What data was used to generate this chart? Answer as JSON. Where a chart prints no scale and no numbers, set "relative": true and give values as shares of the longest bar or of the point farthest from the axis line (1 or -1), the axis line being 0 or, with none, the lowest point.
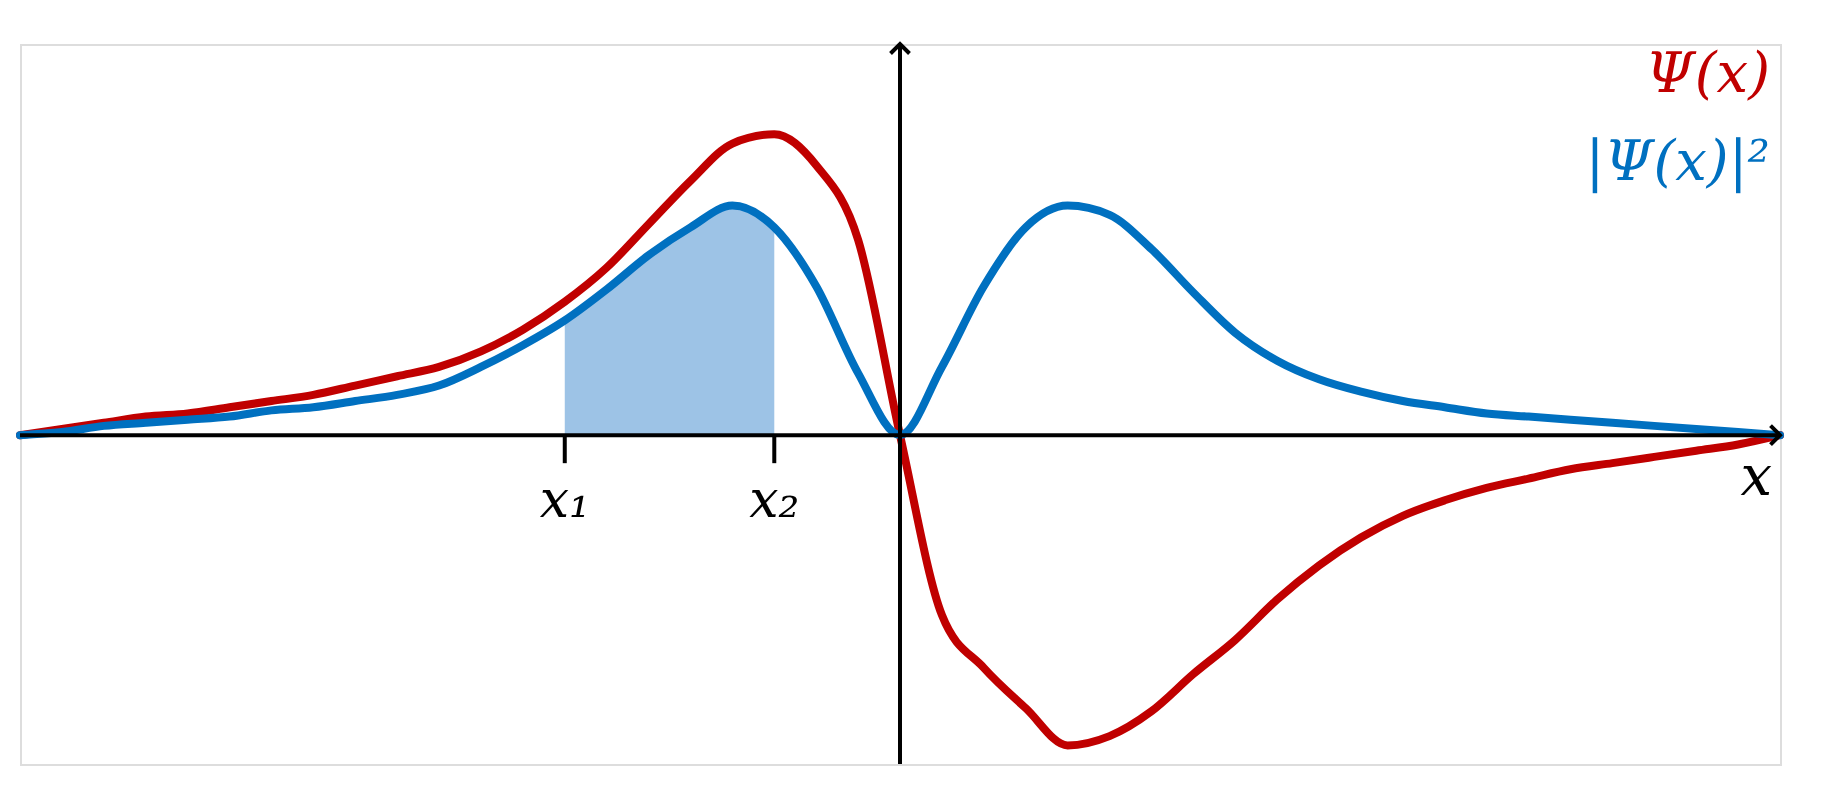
{
  "chart_data": {
    "type": "line",
    "relative": true,
    "xlabel": "x",
    "legend": "top right",
    "marker": "none",
    "line_style": "solid",
    "categories": [
      null,
      null,
      null,
      null,
      null,
      null,
      null,
      null,
      null,
      null,
      null,
      null,
      null,
      "x₁",
      null,
      null,
      null,
      null,
      "x₂",
      null,
      null,
      null,
      null,
      null,
      null,
      null,
      null,
      null,
      null,
      null,
      null,
      null,
      null,
      null,
      null,
      null,
      null,
      null,
      null,
      null,
      null,
      null,
      null
    ],
    "series": [
      {
        "type": "area",
        "color": "#9dc3e6",
        "values": [
          null,
          null,
          null,
          null,
          null,
          null,
          null,
          null,
          null,
          null,
          null,
          null,
          null,
          0.37,
          0.47,
          0.58,
          0.67,
          0.74,
          0.67,
          null,
          null,
          null,
          null,
          null,
          null,
          null,
          null,
          null,
          null,
          null,
          null,
          null,
          null,
          null,
          null,
          null,
          null,
          null,
          null,
          null,
          null,
          null,
          null
        ]
      },
      {
        "name": "Ψ(x)",
        "color": "#c00000",
        "values": [
          0,
          0.02,
          0.04,
          0.06,
          0.07,
          0.09,
          0.11,
          0.13,
          0.16,
          0.19,
          0.22,
          0.27,
          0.34,
          0.43,
          0.54,
          0.68,
          0.82,
          0.94,
          0.97,
          0.87,
          0.63,
          0,
          -0.58,
          -0.75,
          -0.88,
          -1.0,
          -0.97,
          -0.89,
          -0.77,
          -0.66,
          -0.53,
          -0.42,
          -0.33,
          -0.26,
          -0.21,
          -0.17,
          -0.14,
          -0.11,
          -0.09,
          -0.07,
          -0.05,
          -0.03,
          0
        ]
      },
      {
        "name": "|Ψ(x)|²",
        "color": "#0070c0",
        "values": [
          0,
          0.01,
          0.03,
          0.04,
          0.05,
          0.06,
          0.08,
          0.09,
          0.11,
          0.13,
          0.16,
          0.22,
          0.29,
          0.37,
          0.47,
          0.58,
          0.67,
          0.74,
          0.67,
          0.48,
          0.2,
          0,
          0.22,
          0.48,
          0.67,
          0.74,
          0.71,
          0.6,
          0.46,
          0.33,
          0.24,
          0.18,
          0.14,
          0.11,
          0.09,
          0.07,
          0.06,
          0.05,
          0.04,
          0.03,
          0.02,
          0.01,
          0
        ]
      }
    ]
  }
}
